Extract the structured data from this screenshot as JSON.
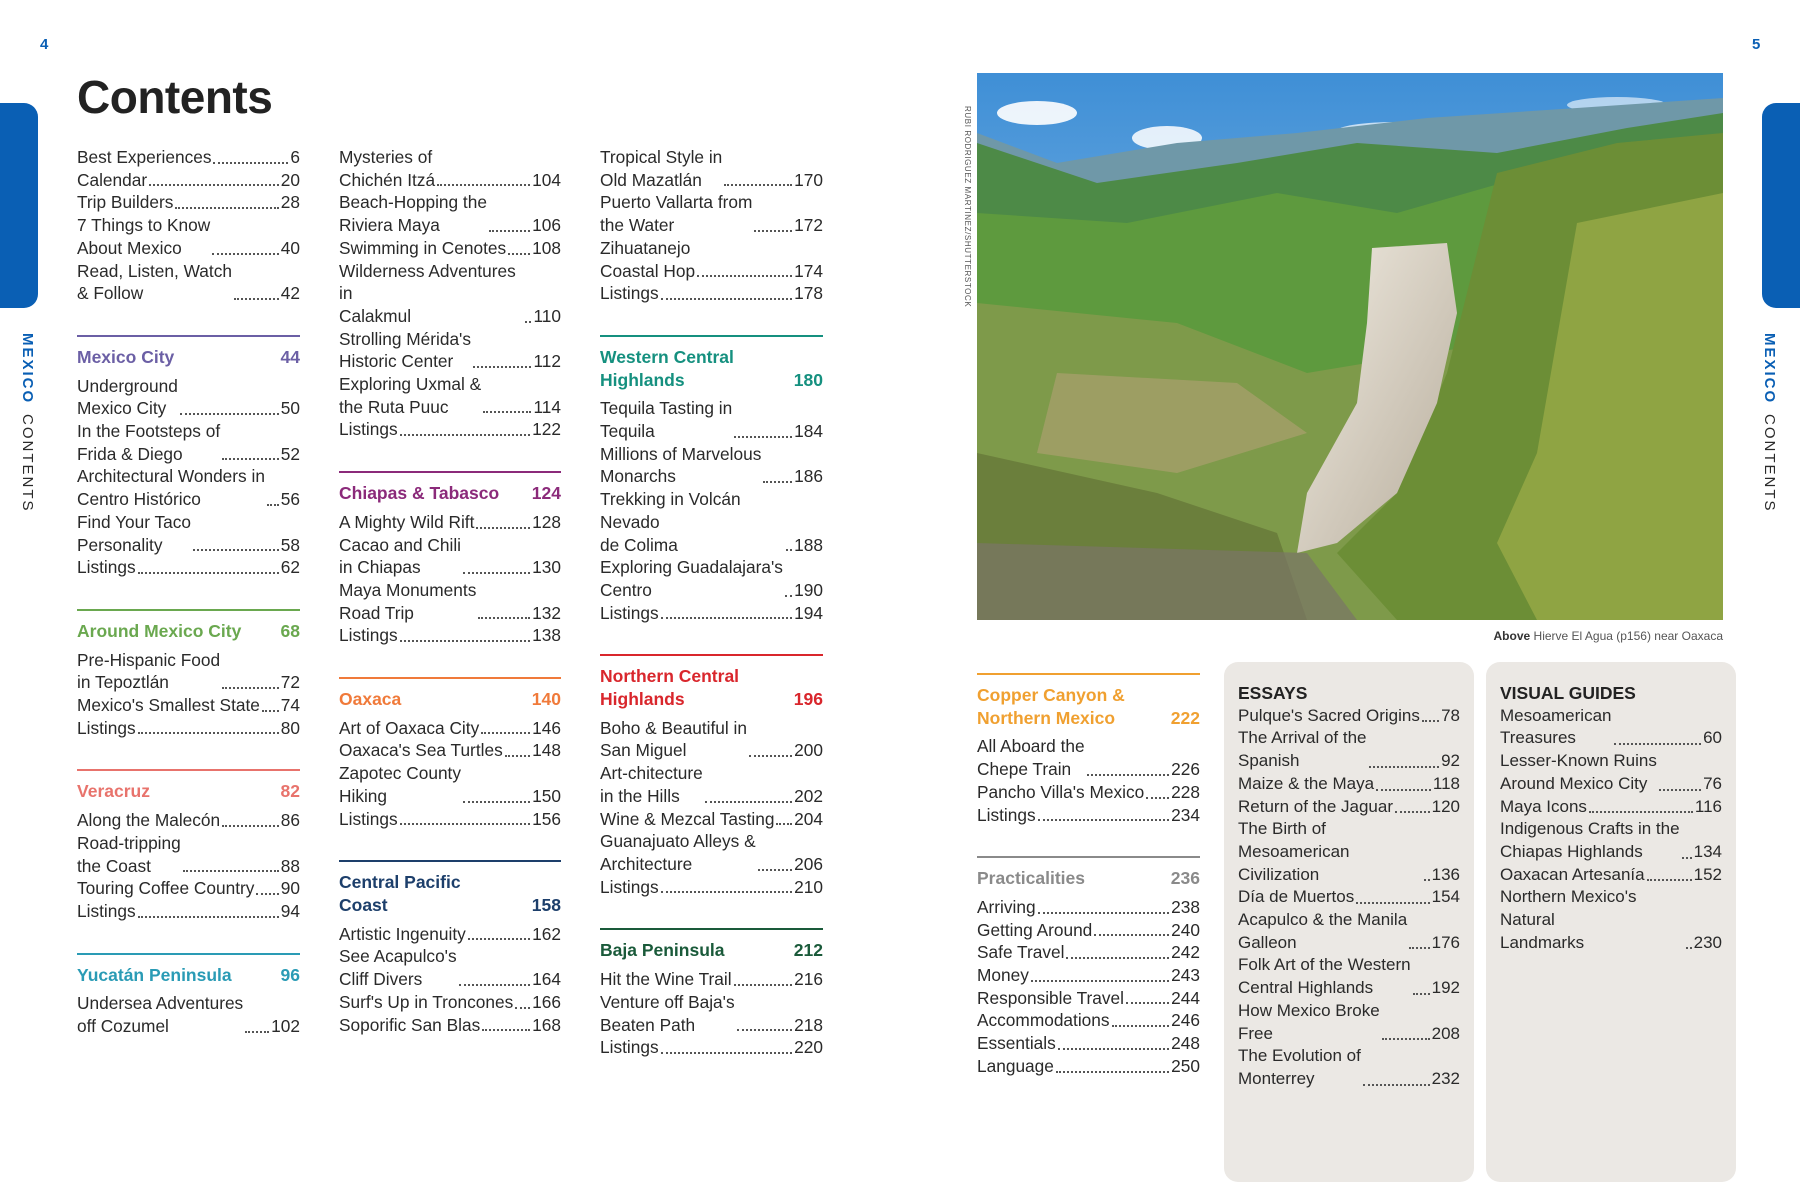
{
  "page_numbers": {
    "left": "4",
    "right": "5"
  },
  "side_label": {
    "bold": "MEXICO",
    "regular": "CONTENTS"
  },
  "title": "Contents",
  "colors": {
    "brand_blue": "#0a5fb4",
    "box_gray": "#ebe8e4"
  },
  "columns": [
    [
      {
        "items": [
          {
            "text": "Best Experiences",
            "page": "6"
          },
          {
            "text": "Calendar",
            "page": "20"
          },
          {
            "text": "Trip Builders",
            "page": "28"
          },
          {
            "text": "7 Things to Know\nAbout Mexico",
            "page": "40"
          },
          {
            "text": "Read, Listen, Watch\n& Follow",
            "page": "42"
          }
        ]
      },
      {
        "title": "Mexico City",
        "page": "44",
        "color": "#6b5fa5",
        "items": [
          {
            "text": "Underground\nMexico City",
            "page": "50"
          },
          {
            "text": "In the Footsteps of\nFrida & Diego",
            "page": "52"
          },
          {
            "text": "Architectural Wonders in\nCentro Histórico",
            "page": "56"
          },
          {
            "text": "Find Your Taco\nPersonality",
            "page": "58"
          },
          {
            "text": "Listings",
            "page": "62"
          }
        ]
      },
      {
        "title": "Around Mexico City",
        "page": "68",
        "color": "#6aa84f",
        "items": [
          {
            "text": "Pre-Hispanic Food\nin Tepoztlán",
            "page": "72"
          },
          {
            "text": "Mexico's Smallest State",
            "page": "74"
          },
          {
            "text": "Listings",
            "page": "80"
          }
        ]
      },
      {
        "title": "Veracruz",
        "page": "82",
        "color": "#e8736c",
        "items": [
          {
            "text": "Along the Malecón",
            "page": "86"
          },
          {
            "text": "Road-tripping\nthe Coast",
            "page": "88"
          },
          {
            "text": "Touring Coffee Country",
            "page": "90"
          },
          {
            "text": "Listings",
            "page": "94"
          }
        ]
      },
      {
        "title": "Yucatán Peninsula",
        "page": "96",
        "color": "#2a9bb5",
        "items": [
          {
            "text": "Undersea Adventures\noff Cozumel",
            "page": "102"
          }
        ]
      }
    ],
    [
      {
        "items": [
          {
            "text": "Mysteries of\nChichén Itzá",
            "page": "104"
          },
          {
            "text": "Beach-Hopping the\nRiviera Maya",
            "page": "106"
          },
          {
            "text": "Swimming in Cenotes",
            "page": "108"
          },
          {
            "text": "Wilderness Adventures in\nCalakmul",
            "page": "110"
          },
          {
            "text": "Strolling Mérida's\nHistoric Center",
            "page": "112"
          },
          {
            "text": "Exploring Uxmal &\nthe Ruta Puuc",
            "page": "114"
          },
          {
            "text": "Listings",
            "page": "122"
          }
        ]
      },
      {
        "title": "Chiapas & Tabasco",
        "page": "124",
        "color": "#8b2a7a",
        "items": [
          {
            "text": "A Mighty Wild Rift",
            "page": "128"
          },
          {
            "text": "Cacao and Chili\nin Chiapas",
            "page": "130"
          },
          {
            "text": "Maya Monuments\nRoad Trip",
            "page": "132"
          },
          {
            "text": "Listings",
            "page": "138"
          }
        ]
      },
      {
        "title": "Oaxaca",
        "page": "140",
        "color": "#f07a3a",
        "items": [
          {
            "text": "Art of Oaxaca City",
            "page": "146"
          },
          {
            "text": "Oaxaca's Sea Turtles",
            "page": "148"
          },
          {
            "text": "Zapotec County\nHiking",
            "page": "150"
          },
          {
            "text": "Listings",
            "page": "156"
          }
        ]
      },
      {
        "title": "Central Pacific\nCoast",
        "page": "158",
        "color": "#1d3f6b",
        "items": [
          {
            "text": "Artistic Ingenuity",
            "page": "162"
          },
          {
            "text": "See Acapulco's\nCliff Divers",
            "page": "164"
          },
          {
            "text": "Surf's Up in Troncones",
            "page": "166"
          },
          {
            "text": "Soporific San Blas",
            "page": "168"
          }
        ]
      }
    ],
    [
      {
        "items": [
          {
            "text": "Tropical Style in\nOld Mazatlán",
            "page": "170"
          },
          {
            "text": "Puerto Vallarta from\nthe Water",
            "page": "172"
          },
          {
            "text": "Zihuatanejo\nCoastal Hop",
            "page": "174"
          },
          {
            "text": "Listings",
            "page": "178"
          }
        ]
      },
      {
        "title": "Western Central\nHighlands",
        "page": "180",
        "color": "#15907f",
        "items": [
          {
            "text": "Tequila Tasting in\nTequila",
            "page": "184"
          },
          {
            "text": "Millions of Marvelous\nMonarchs",
            "page": "186"
          },
          {
            "text": "Trekking in Volcán Nevado\nde Colima",
            "page": "188"
          },
          {
            "text": "Exploring Guadalajara's\nCentro",
            "page": "190"
          },
          {
            "text": "Listings",
            "page": "194"
          }
        ]
      },
      {
        "title": "Northern Central\nHighlands",
        "page": "196",
        "color": "#d9262c",
        "items": [
          {
            "text": "Boho & Beautiful in\nSan Miguel",
            "page": "200"
          },
          {
            "text": "Art-chitecture\nin the Hills",
            "page": "202"
          },
          {
            "text": "Wine & Mezcal Tasting",
            "page": "204"
          },
          {
            "text": "Guanajuato Alleys &\nArchitecture",
            "page": "206"
          },
          {
            "text": "Listings",
            "page": "210"
          }
        ]
      },
      {
        "title": "Baja Peninsula",
        "page": "212",
        "color": "#1a5a3a",
        "items": [
          {
            "text": "Hit the Wine Trail",
            "page": "216"
          },
          {
            "text": "Venture off Baja's\nBeaten Path",
            "page": "218"
          },
          {
            "text": "Listings",
            "page": "220"
          }
        ]
      }
    ],
    [
      {
        "title": "Copper Canyon &\nNorthern Mexico",
        "page": "222",
        "color": "#f0a030",
        "items": [
          {
            "text": "All Aboard the\nChepe Train",
            "page": "226"
          },
          {
            "text": "Pancho Villa's Mexico",
            "page": "228"
          },
          {
            "text": "Listings",
            "page": "234"
          }
        ]
      },
      {
        "title": "Practicalities",
        "page": "236",
        "color": "#8a8a8a",
        "items": [
          {
            "text": "Arriving",
            "page": "238"
          },
          {
            "text": "Getting Around",
            "page": "240"
          },
          {
            "text": "Safe Travel",
            "page": "242"
          },
          {
            "text": "Money",
            "page": "243"
          },
          {
            "text": "Responsible Travel",
            "page": "244"
          },
          {
            "text": "Accommodations",
            "page": "246"
          },
          {
            "text": "Essentials",
            "page": "248"
          },
          {
            "text": "Language",
            "page": "250"
          }
        ]
      }
    ]
  ],
  "essays": {
    "title": "ESSAYS",
    "items": [
      {
        "text": "Pulque's Sacred Origins",
        "page": "78"
      },
      {
        "text": "The Arrival of the\nSpanish",
        "page": "92"
      },
      {
        "text": "Maize & the Maya",
        "page": "118"
      },
      {
        "text": "Return of the Jaguar",
        "page": "120"
      },
      {
        "text": "The Birth of Mesoamerican\nCivilization",
        "page": "136"
      },
      {
        "text": "Día de Muertos",
        "page": "154"
      },
      {
        "text": "Acapulco & the Manila\nGalleon",
        "page": "176"
      },
      {
        "text": "Folk Art of the Western\nCentral Highlands",
        "page": "192"
      },
      {
        "text": "How Mexico Broke\nFree",
        "page": "208"
      },
      {
        "text": "The Evolution of\nMonterrey",
        "page": "232"
      }
    ]
  },
  "visual_guides": {
    "title": "VISUAL GUIDES",
    "items": [
      {
        "text": "Mesoamerican\nTreasures",
        "page": "60"
      },
      {
        "text": "Lesser-Known Ruins\nAround Mexico City",
        "page": "76"
      },
      {
        "text": "Maya Icons",
        "page": "116"
      },
      {
        "text": "Indigenous Crafts in the\nChiapas Highlands",
        "page": "134"
      },
      {
        "text": "Oaxacan Artesanía",
        "page": "152"
      },
      {
        "text": "Northern Mexico's Natural\nLandmarks",
        "page": "230"
      }
    ]
  },
  "photo": {
    "credit": "RUBI RODRIGUEZ MARTINEZ/SHUTTERSTOCK",
    "caption_label": "Above",
    "caption_text": "Hierve El Agua (p156) near Oaxaca"
  }
}
